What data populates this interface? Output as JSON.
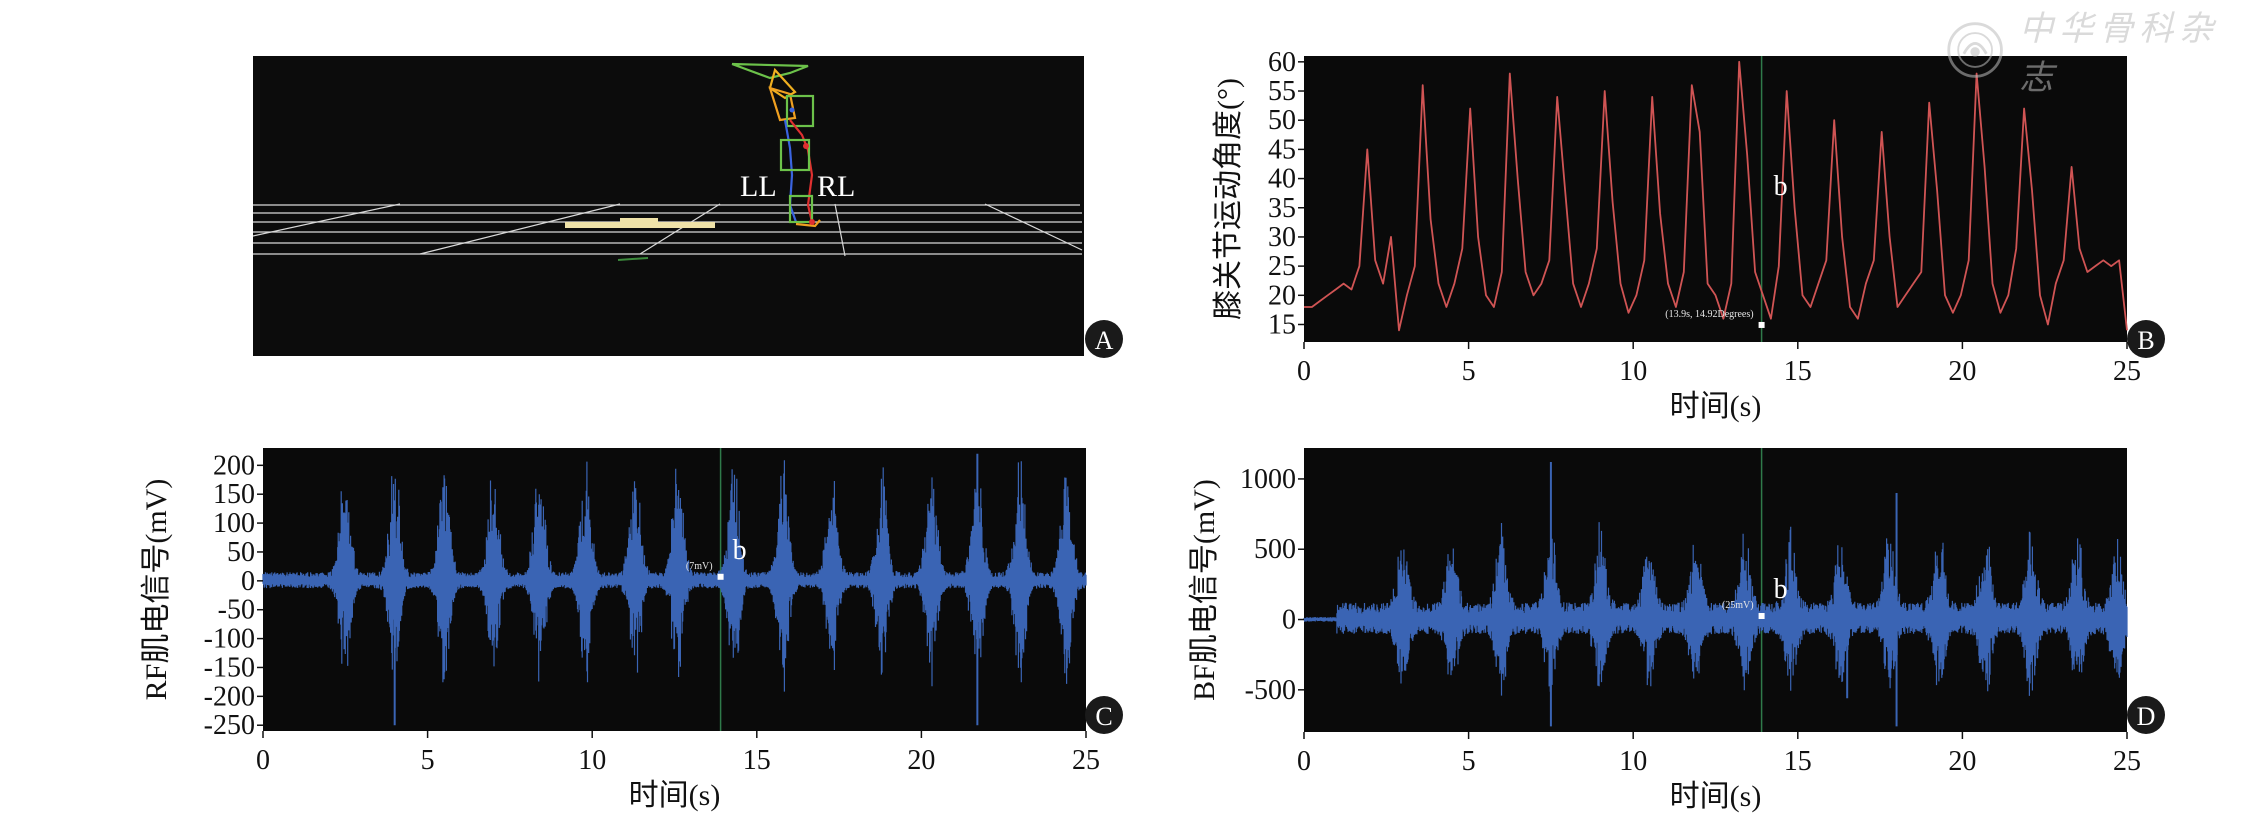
{
  "watermark": {
    "text": "中华骨科杂志"
  },
  "panel_a": {
    "badge": "A",
    "left_leg_label": "LL",
    "right_leg_label": "RL"
  },
  "panels": [
    {
      "id": "B",
      "badge": "B",
      "ylabel": "膝关节运动角度(°)",
      "xlabel": "时间(s)",
      "marker_label": "b",
      "marker_value": "(13.9s, 14.92Degrees)"
    },
    {
      "id": "C",
      "badge": "C",
      "ylabel": "RF肌电信号(mV)",
      "xlabel": "时间(s)",
      "marker_label": "b",
      "marker_value": "(7mV)"
    },
    {
      "id": "D",
      "badge": "D",
      "ylabel": "BF肌电信号(mV)",
      "xlabel": "时间(s)",
      "marker_label": "b",
      "marker_value": "(25mV)"
    }
  ],
  "chart_data": [
    {
      "id": "B",
      "type": "line",
      "series": [
        {
          "values": [
            18,
            18,
            19,
            20,
            21,
            22,
            21,
            25,
            45,
            26,
            22,
            30,
            14,
            20,
            25,
            56,
            33,
            22,
            18,
            22,
            28,
            52,
            30,
            20,
            18,
            24,
            58,
            40,
            24,
            20,
            22,
            26,
            54,
            38,
            22,
            18,
            22,
            28,
            55,
            36,
            22,
            17,
            20,
            26,
            54,
            34,
            22,
            18,
            24,
            56,
            48,
            22,
            20,
            16,
            22,
            60,
            44,
            24,
            20,
            16,
            25,
            55,
            35,
            20,
            18,
            22,
            26,
            50,
            30,
            18,
            16,
            22,
            26,
            48,
            30,
            18,
            20,
            22,
            24,
            53,
            38,
            20,
            17,
            20,
            26,
            58,
            42,
            22,
            17,
            20,
            28,
            52,
            38,
            20,
            15,
            22,
            26,
            42,
            28,
            24,
            25,
            26,
            25,
            26,
            14
          ]
        }
      ],
      "x_range": [
        0,
        25
      ],
      "xlim": [
        0,
        25
      ],
      "ylim": [
        12,
        61
      ],
      "xticks": [
        0,
        5,
        10,
        15,
        20,
        25
      ],
      "yticks": [
        15,
        20,
        25,
        30,
        35,
        40,
        45,
        50,
        55,
        60
      ],
      "cursor_x": 13.9,
      "marker": {
        "x": 13.9,
        "y": 14.92
      },
      "color": "#d05454",
      "background": "#0a0a0a"
    },
    {
      "id": "C",
      "type": "line",
      "series": [
        {
          "name": "RF",
          "signal": "emg_bursts",
          "burst_times": [
            2.5,
            4.0,
            5.5,
            7.0,
            8.4,
            9.8,
            11.3,
            12.6,
            14.3,
            15.8,
            17.3,
            18.8,
            20.3,
            21.7,
            23.0,
            24.4
          ],
          "burst_peak": 220,
          "baseline_amplitude": 15
        }
      ],
      "spikes": [
        {
          "x": 4.0,
          "y": -250
        },
        {
          "x": 21.7,
          "y": 220
        },
        {
          "x": 21.7,
          "y": -250
        }
      ],
      "xlim": [
        0,
        25
      ],
      "ylim": [
        -260,
        230
      ],
      "xticks": [
        0,
        5,
        10,
        15,
        20,
        25
      ],
      "yticks": [
        -250,
        -200,
        -150,
        -100,
        -50,
        0,
        50,
        100,
        150,
        200
      ],
      "cursor_x": 13.9,
      "marker": {
        "x": 13.9,
        "y": 7
      },
      "color": "#3a64b4",
      "background": "#0a0a0a"
    },
    {
      "id": "D",
      "type": "line",
      "series": [
        {
          "name": "BF",
          "signal": "emg_bursts",
          "burst_times": [
            3.0,
            4.5,
            6.0,
            7.5,
            9.0,
            10.5,
            11.9,
            13.4,
            14.8,
            16.3,
            17.8,
            19.3,
            20.7,
            22.1,
            23.5,
            24.7
          ],
          "burst_peak": 600,
          "baseline_amplitude": 120,
          "start_x": 1.0
        }
      ],
      "spikes": [
        {
          "x": 7.5,
          "y": 1120
        },
        {
          "x": 7.5,
          "y": -760
        },
        {
          "x": 18.0,
          "y": 900
        },
        {
          "x": 18.0,
          "y": -760
        },
        {
          "x": 16.5,
          "y": -560
        }
      ],
      "xlim": [
        0,
        25
      ],
      "ylim": [
        -800,
        1220
      ],
      "xticks": [
        0,
        5,
        10,
        15,
        20,
        25
      ],
      "yticks": [
        -500,
        0,
        500,
        1000
      ],
      "cursor_x": 13.9,
      "marker": {
        "x": 13.9,
        "y": 25
      },
      "color": "#3a64b4",
      "background": "#0a0a0a"
    }
  ]
}
